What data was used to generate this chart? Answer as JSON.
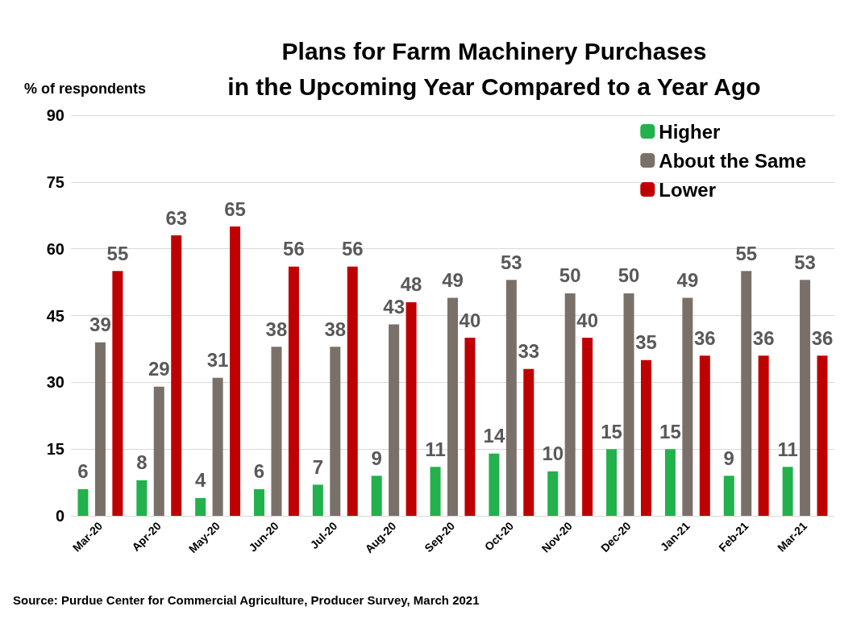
{
  "chart_data": {
    "type": "bar",
    "title": "Plans for Farm Machinery Purchases\nin the Upcoming Year Compared to a Year Ago",
    "ylabel": "% of respondents",
    "categories": [
      "Mar-20",
      "Apr-20",
      "May-20",
      "Jun-20",
      "Jul-20",
      "Aug-20",
      "Sep-20",
      "Oct-20",
      "Nov-20",
      "Dec-20",
      "Jan-21",
      "Feb-21",
      "Mar-21"
    ],
    "series": [
      {
        "name": "Higher",
        "color": "#22b14c",
        "values": [
          6,
          8,
          4,
          6,
          7,
          9,
          11,
          14,
          10,
          15,
          15,
          9,
          11
        ]
      },
      {
        "name": "About the Same",
        "color": "#7a706a",
        "values": [
          39,
          29,
          31,
          38,
          38,
          43,
          49,
          53,
          50,
          50,
          49,
          55,
          53
        ]
      },
      {
        "name": "Lower",
        "color": "#c00000",
        "values": [
          55,
          63,
          65,
          56,
          56,
          48,
          40,
          33,
          40,
          35,
          36,
          36,
          36
        ]
      }
    ],
    "ylim": [
      0,
      90
    ],
    "yticks": [
      0,
      15,
      30,
      45,
      60,
      75,
      90
    ],
    "grid": "y",
    "legend": "top right",
    "data_labels": true,
    "annotations": [
      "Source: Purdue Center for Commercial Agriculture, Producer Survey, March 2021"
    ]
  }
}
